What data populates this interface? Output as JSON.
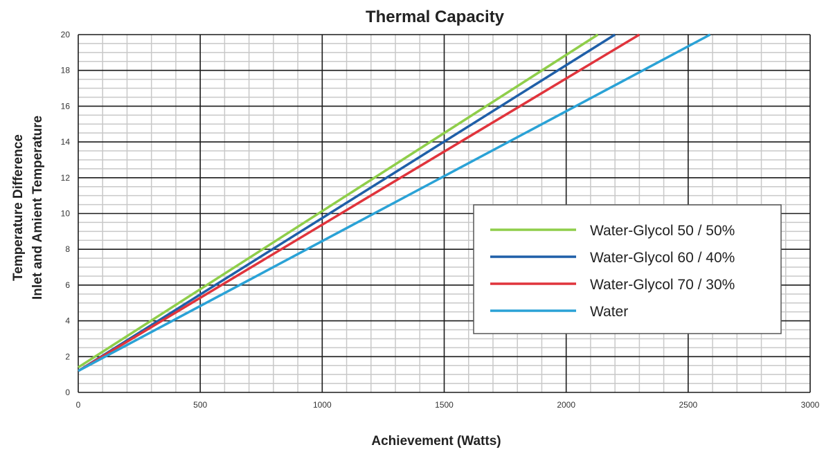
{
  "chart_data": {
    "type": "line",
    "title": "Thermal Capacity",
    "xlabel": "Achievement (Watts)",
    "ylabel_line1": "Temperature Difference",
    "ylabel_line2": "Inlet and Amient Temperature",
    "xlim": [
      0,
      3000
    ],
    "ylim": [
      0,
      20
    ],
    "x_ticks": [
      "0",
      "500",
      "1000",
      "1500",
      "2000",
      "2500",
      "3000"
    ],
    "y_ticks": [
      "0",
      "2",
      "4",
      "6",
      "8",
      "10",
      "12",
      "14",
      "16",
      "18",
      "20"
    ],
    "grid": true,
    "legend_position": "right",
    "series": [
      {
        "name": "Water-Glycol 50 / 50%",
        "color": "#8fce4a",
        "x": [
          0,
          2130
        ],
        "y": [
          1.4,
          20.0
        ]
      },
      {
        "name": "Water-Glycol 60 / 40%",
        "color": "#1f5fa8",
        "x": [
          0,
          2200
        ],
        "y": [
          1.2,
          20.0
        ]
      },
      {
        "name": "Water-Glycol 70 / 30%",
        "color": "#e0343c",
        "x": [
          0,
          2300
        ],
        "y": [
          1.2,
          20.0
        ]
      },
      {
        "name": "Water",
        "color": "#2aa2d6",
        "x": [
          0,
          2590
        ],
        "y": [
          1.2,
          20.0
        ]
      }
    ]
  }
}
